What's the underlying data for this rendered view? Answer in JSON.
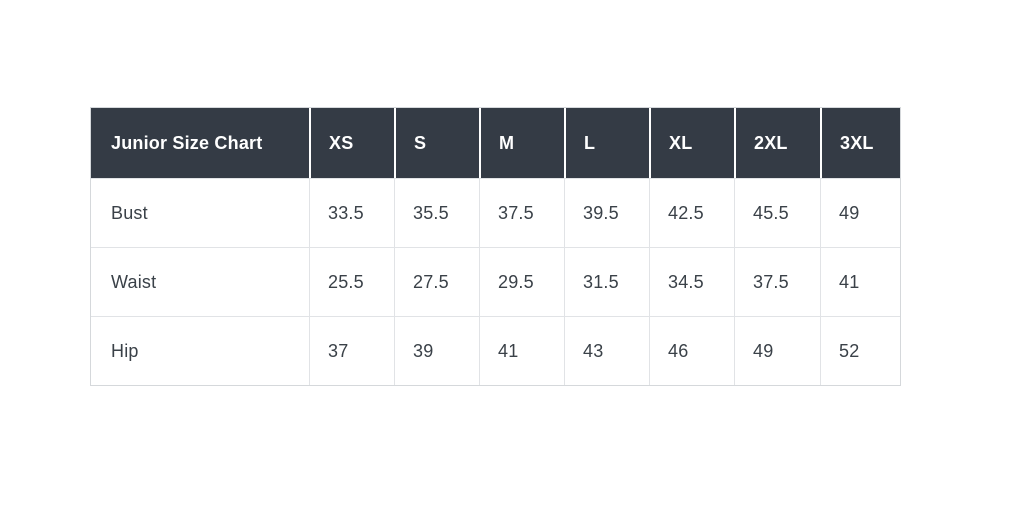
{
  "table": {
    "title": "Junior Size Chart",
    "size_headers": [
      "XS",
      "S",
      "M",
      "L",
      "XL",
      "2XL",
      "3XL"
    ],
    "rows": [
      {
        "label": "Bust",
        "values": [
          "33.5",
          "35.5",
          "37.5",
          "39.5",
          "42.5",
          "45.5",
          "49"
        ]
      },
      {
        "label": "Waist",
        "values": [
          "25.5",
          "27.5",
          "29.5",
          "31.5",
          "34.5",
          "37.5",
          "41"
        ]
      },
      {
        "label": "Hip",
        "values": [
          "37",
          "39",
          "41",
          "43",
          "46",
          "49",
          "52"
        ]
      }
    ],
    "colors": {
      "header_bg": "#343b45",
      "header_text": "#ffffff",
      "header_divider": "#ffffff",
      "body_text": "#3a4148",
      "body_border": "#e1e3e6",
      "outer_border": "#d5d8db",
      "page_bg": "#ffffff"
    }
  },
  "chart_data": {
    "type": "table",
    "title": "Junior Size Chart",
    "columns": [
      "Junior Size Chart",
      "XS",
      "S",
      "M",
      "L",
      "XL",
      "2XL",
      "3XL"
    ],
    "rows": [
      [
        "Bust",
        33.5,
        35.5,
        37.5,
        39.5,
        42.5,
        45.5,
        49
      ],
      [
        "Waist",
        25.5,
        27.5,
        29.5,
        31.5,
        34.5,
        37.5,
        41
      ],
      [
        "Hip",
        37,
        39,
        41,
        43,
        46,
        49,
        52
      ]
    ],
    "units": "inches (implied, not labeled)",
    "layout": "header row dark with white text; measurement labels left column; grid borders light gray; all text left-aligned"
  }
}
